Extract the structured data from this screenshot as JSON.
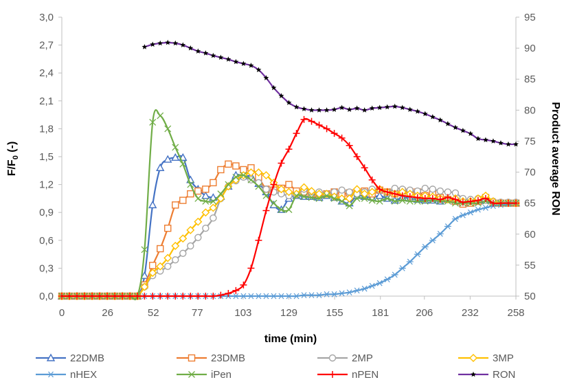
{
  "chart_data": {
    "type": "line",
    "xlabel": "time (min)",
    "ylabel_left_main": "F/F",
    "ylabel_left_sub": "0",
    "ylabel_left_tail": " (-)",
    "ylabel_right": "Product average RON",
    "x_ticks": [
      "0",
      "26",
      "52",
      "77",
      "103",
      "129",
      "155",
      "181",
      "206",
      "232",
      "258"
    ],
    "x_range": [
      0,
      258
    ],
    "y_left_ticks": [
      "0,0",
      "0,3",
      "0,6",
      "0,9",
      "1,2",
      "1,5",
      "1,8",
      "2,1",
      "2,4",
      "2,7",
      "3,0"
    ],
    "y_left_range": [
      0,
      3.0
    ],
    "y_right_ticks": [
      "50",
      "55",
      "60",
      "65",
      "70",
      "75",
      "80",
      "85",
      "90",
      "95"
    ],
    "y_right_range": [
      50,
      95
    ],
    "grid": false,
    "legend_position": "bottom",
    "series": [
      {
        "name": "22DMB",
        "axis": "left",
        "color": "#4472C4",
        "marker": "triangle",
        "x": [
          0,
          4.3,
          8.6,
          12.9,
          17.2,
          21.5,
          25.8,
          30.1,
          34.4,
          38.7,
          43,
          47,
          51.6,
          55.9,
          60.2,
          64.5,
          68.8,
          73.1,
          77.4,
          81.7,
          86,
          90.3,
          94.6,
          98.9,
          103.2,
          107.5,
          111.8,
          116.1,
          120.4,
          124.7,
          129,
          133.3,
          137.6,
          141.9,
          146.2,
          150.5,
          154.8,
          159.1,
          163.4,
          167.7,
          172,
          176.3,
          180.6,
          184.9,
          189.2,
          193.5,
          197.8,
          202.1,
          206.4,
          210.7,
          215,
          219.3,
          223.6,
          227.9,
          232.2,
          236.5,
          240.8,
          245.1,
          249.4,
          253.7,
          258
        ],
        "y": [
          0,
          0,
          0,
          0,
          0,
          0,
          0,
          0,
          0,
          0,
          0,
          0.22,
          0.98,
          1.38,
          1.47,
          1.49,
          1.49,
          1.25,
          1.15,
          1.08,
          1.06,
          1.07,
          1.18,
          1.3,
          1.29,
          1.29,
          1.21,
          1.12,
          0.98,
          0.93,
          1.05,
          1.08,
          1.07,
          1.07,
          1.06,
          1.08,
          1.06,
          1.02,
          1.0,
          1.08,
          1.07,
          1.06,
          1.08,
          1.05,
          1.03,
          1.06,
          1.05,
          1.04,
          1.03,
          1.03,
          1.02,
          1.04,
          1.02,
          1.0,
          1.0,
          1.02,
          1.03,
          1.0,
          1.0,
          1.0,
          1.0
        ]
      },
      {
        "name": "23DMB",
        "axis": "left",
        "color": "#ED7D31",
        "marker": "square",
        "x": [
          0,
          4.3,
          8.6,
          12.9,
          17.2,
          21.5,
          25.8,
          30.1,
          34.4,
          38.7,
          43,
          47,
          51.6,
          55.9,
          60.2,
          64.5,
          68.8,
          73.1,
          77.4,
          81.7,
          86,
          90.3,
          94.6,
          98.9,
          103.2,
          107.5,
          111.8,
          116.1,
          120.4,
          124.7,
          129,
          133.3,
          137.6,
          141.9,
          146.2,
          150.5,
          154.8,
          159.1,
          163.4,
          167.7,
          172,
          176.3,
          180.6,
          184.9,
          189.2,
          193.5,
          197.8,
          202.1,
          206.4,
          210.7,
          215,
          219.3,
          223.6,
          227.9,
          232.2,
          236.5,
          240.8,
          245.1,
          249.4,
          253.7,
          258
        ],
        "y": [
          0,
          0,
          0,
          0,
          0,
          0,
          0,
          0,
          0,
          0,
          0,
          0.12,
          0.33,
          0.51,
          0.73,
          0.98,
          1.03,
          1.1,
          1.13,
          1.15,
          1.22,
          1.36,
          1.42,
          1.4,
          1.36,
          1.38,
          1.28,
          1.15,
          1.14,
          1.16,
          1.2,
          1.13,
          1.12,
          1.1,
          1.09,
          1.1,
          1.12,
          1.1,
          1.11,
          1.12,
          1.13,
          1.1,
          1.14,
          1.12,
          1.1,
          1.13,
          1.12,
          1.12,
          1.08,
          1.1,
          1.06,
          1.04,
          1.02,
          0.99,
          1.0,
          1.02,
          1.06,
          1.0,
          1.0,
          1.0,
          1.0
        ]
      },
      {
        "name": "2MP",
        "axis": "left",
        "color": "#A5A5A5",
        "marker": "circle",
        "x": [
          0,
          4.3,
          8.6,
          12.9,
          17.2,
          21.5,
          25.8,
          30.1,
          34.4,
          38.7,
          43,
          47,
          51.6,
          55.9,
          60.2,
          64.5,
          68.8,
          73.1,
          77.4,
          81.7,
          86,
          90.3,
          94.6,
          98.9,
          103.2,
          107.5,
          111.8,
          116.1,
          120.4,
          124.7,
          129,
          133.3,
          137.6,
          141.9,
          146.2,
          150.5,
          154.8,
          159.1,
          163.4,
          167.7,
          172,
          176.3,
          180.6,
          184.9,
          189.2,
          193.5,
          197.8,
          202.1,
          206.4,
          210.7,
          215,
          219.3,
          223.6,
          227.9,
          232.2,
          236.5,
          240.8,
          245.1,
          249.4,
          253.7,
          258
        ],
        "y": [
          0,
          0,
          0,
          0,
          0,
          0,
          0,
          0,
          0,
          0,
          0,
          0.1,
          0.22,
          0.27,
          0.32,
          0.39,
          0.46,
          0.54,
          0.63,
          0.73,
          0.84,
          1.05,
          1.18,
          1.24,
          1.28,
          1.25,
          1.22,
          1.15,
          1.12,
          1.1,
          1.08,
          1.09,
          1.15,
          1.12,
          1.12,
          1.1,
          1.12,
          1.14,
          1.12,
          1.1,
          1.12,
          1.15,
          1.14,
          1.12,
          1.16,
          1.15,
          1.14,
          1.13,
          1.16,
          1.15,
          1.13,
          1.12,
          1.11,
          1.05,
          1.04,
          1.05,
          1.03,
          1.02,
          1.01,
          1.01,
          1.01
        ]
      },
      {
        "name": "3MP",
        "axis": "left",
        "color": "#FFC000",
        "marker": "diamond",
        "x": [
          0,
          4.3,
          8.6,
          12.9,
          17.2,
          21.5,
          25.8,
          30.1,
          34.4,
          38.7,
          43,
          47,
          51.6,
          55.9,
          60.2,
          64.5,
          68.8,
          73.1,
          77.4,
          81.7,
          86,
          90.3,
          94.6,
          98.9,
          103.2,
          107.5,
          111.8,
          116.1,
          120.4,
          124.7,
          129,
          133.3,
          137.6,
          141.9,
          146.2,
          150.5,
          154.8,
          159.1,
          163.4,
          167.7,
          172,
          176.3,
          180.6,
          184.9,
          189.2,
          193.5,
          197.8,
          202.1,
          206.4,
          210.7,
          215,
          219.3,
          223.6,
          227.9,
          232.2,
          236.5,
          240.8,
          245.1,
          249.4,
          253.7,
          258
        ],
        "y": [
          0,
          0,
          0,
          0,
          0,
          0,
          0,
          0,
          0,
          0,
          0,
          0.1,
          0.25,
          0.32,
          0.41,
          0.54,
          0.62,
          0.71,
          0.8,
          0.9,
          0.95,
          1.05,
          1.18,
          1.25,
          1.3,
          1.33,
          1.33,
          1.3,
          1.22,
          1.15,
          1.12,
          1.1,
          1.17,
          1.13,
          1.1,
          1.1,
          1.07,
          1.05,
          1.05,
          1.15,
          1.1,
          1.12,
          1.15,
          1.12,
          1.1,
          1.12,
          1.1,
          1.08,
          1.08,
          1.07,
          1.05,
          1.04,
          1.05,
          1.02,
          1.02,
          1.05,
          1.08,
          1.02,
          1.0,
          1.0,
          1.0
        ]
      },
      {
        "name": "nHEX",
        "axis": "left",
        "color": "#5B9BD5",
        "marker": "star",
        "x": [
          0,
          4.3,
          8.6,
          12.9,
          17.2,
          21.5,
          25.8,
          30.1,
          34.4,
          38.7,
          43,
          47,
          51.6,
          55.9,
          60.2,
          64.5,
          68.8,
          73.1,
          77.4,
          81.7,
          86,
          90.3,
          94.6,
          98.9,
          103.2,
          107.5,
          111.8,
          116.1,
          120.4,
          124.7,
          129,
          133.3,
          137.6,
          141.9,
          146.2,
          150.5,
          154.8,
          159.1,
          163.4,
          167.7,
          172,
          176.3,
          180.6,
          184.9,
          189.2,
          193.5,
          197.8,
          202.1,
          206.4,
          210.7,
          215,
          219.3,
          223.6,
          227.9,
          232.2,
          236.5,
          240.8,
          245.1,
          249.4,
          253.7,
          258
        ],
        "y": [
          0,
          0,
          0,
          0,
          0,
          0,
          0,
          0,
          0,
          0,
          0,
          0,
          0,
          0,
          0,
          0,
          0,
          0,
          0,
          0,
          0,
          0,
          0,
          0,
          0,
          0,
          0,
          0,
          0,
          0,
          0,
          0,
          0.01,
          0.01,
          0.01,
          0.02,
          0.02,
          0.03,
          0.04,
          0.06,
          0.08,
          0.11,
          0.14,
          0.18,
          0.23,
          0.3,
          0.37,
          0.45,
          0.53,
          0.6,
          0.67,
          0.75,
          0.83,
          0.87,
          0.9,
          0.93,
          0.95,
          0.97,
          0.98,
          0.99,
          1.0
        ]
      },
      {
        "name": "iPen",
        "axis": "left",
        "color": "#70AD47",
        "marker": "x",
        "x": [
          0,
          4.3,
          8.6,
          12.9,
          17.2,
          21.5,
          25.8,
          30.1,
          34.4,
          38.7,
          43,
          47,
          51.6,
          55.9,
          60.2,
          64.5,
          68.8,
          73.1,
          77.4,
          81.7,
          86,
          90.3,
          94.6,
          98.9,
          103.2,
          107.5,
          111.8,
          116.1,
          120.4,
          124.7,
          129,
          133.3,
          137.6,
          141.9,
          146.2,
          150.5,
          154.8,
          159.1,
          163.4,
          167.7,
          172,
          176.3,
          180.6,
          184.9,
          189.2,
          193.5,
          197.8,
          202.1,
          206.4,
          210.7,
          215,
          219.3,
          223.6,
          227.9,
          232.2,
          236.5,
          240.8,
          245.1,
          249.4,
          253.7,
          258
        ],
        "y": [
          0,
          0,
          0,
          0,
          0,
          0,
          0,
          0,
          0,
          0,
          0,
          0.5,
          1.87,
          1.94,
          1.8,
          1.6,
          1.42,
          1.2,
          1.05,
          1.02,
          1.02,
          1.1,
          1.2,
          1.28,
          1.3,
          1.25,
          1.18,
          1.08,
          1.0,
          0.93,
          0.93,
          1.08,
          1.07,
          1.06,
          1.05,
          1.08,
          1.05,
          1.02,
          0.97,
          1.05,
          1.05,
          1.03,
          1.02,
          1.05,
          1.02,
          1.03,
          1.02,
          1.02,
          1.02,
          1.03,
          1.02,
          1.02,
          1.0,
          1.0,
          1.0,
          1.0,
          1.02,
          1.0,
          1.0,
          1.0,
          1.0
        ]
      },
      {
        "name": "nPEN",
        "axis": "left",
        "color": "#FF0000",
        "marker": "plus",
        "x": [
          0,
          4.3,
          8.6,
          12.9,
          17.2,
          21.5,
          25.8,
          30.1,
          34.4,
          38.7,
          43,
          47,
          51.6,
          55.9,
          60.2,
          64.5,
          68.8,
          73.1,
          77.4,
          81.7,
          86,
          90.3,
          94.6,
          98.9,
          103.2,
          107.5,
          111.8,
          116.1,
          120.4,
          124.7,
          129,
          133.3,
          137.6,
          141.9,
          146.2,
          150.5,
          154.8,
          159.1,
          163.4,
          167.7,
          172,
          176.3,
          180.6,
          184.9,
          189.2,
          193.5,
          197.8,
          202.1,
          206.4,
          210.7,
          215,
          219.3,
          223.6,
          227.9,
          232.2,
          236.5,
          240.8,
          245.1,
          249.4,
          253.7,
          258
        ],
        "y": [
          0,
          0,
          0,
          0,
          0,
          0,
          0,
          0,
          0,
          0,
          0,
          0,
          0,
          0,
          0,
          0,
          0,
          0,
          0,
          0,
          0,
          0.01,
          0.03,
          0.06,
          0.12,
          0.3,
          0.6,
          0.92,
          1.2,
          1.43,
          1.58,
          1.75,
          1.9,
          1.88,
          1.84,
          1.8,
          1.75,
          1.7,
          1.62,
          1.5,
          1.38,
          1.25,
          1.15,
          1.12,
          1.1,
          1.08,
          1.07,
          1.06,
          1.05,
          1.05,
          1.04,
          1.06,
          1.04,
          1.01,
          1.02,
          1.03,
          1.05,
          1.0,
          1.0,
          1.0,
          1.0
        ]
      },
      {
        "name": "RON",
        "axis": "right",
        "color": "#7030A0",
        "marker": "star5",
        "x": [
          47,
          51.6,
          55.9,
          60.2,
          64.5,
          68.8,
          73.1,
          77.4,
          81.7,
          86,
          90.3,
          94.6,
          98.9,
          103.2,
          107.5,
          111.8,
          116.1,
          120.4,
          124.7,
          129,
          133.3,
          137.6,
          141.9,
          146.2,
          150.5,
          154.8,
          159.1,
          163.4,
          167.7,
          172,
          176.3,
          180.6,
          184.9,
          189.2,
          193.5,
          197.8,
          202.1,
          206.4,
          210.7,
          215,
          219.3,
          223.6,
          227.9,
          232.2,
          236.5,
          240.8,
          245.1,
          249.4,
          253.7,
          258
        ],
        "y": [
          90.2,
          90.6,
          90.8,
          90.9,
          90.8,
          90.5,
          90.0,
          89.5,
          89.2,
          88.8,
          88.5,
          88.2,
          87.8,
          87.5,
          87.2,
          86.5,
          85.2,
          83.6,
          82.3,
          81.2,
          80.5,
          80.2,
          80.0,
          80.0,
          80.0,
          80.1,
          80.4,
          80.1,
          80.3,
          80.0,
          80.3,
          80.4,
          80.5,
          80.6,
          80.4,
          80.1,
          79.8,
          79.4,
          78.9,
          78.4,
          77.8,
          77.2,
          76.7,
          76.2,
          75.4,
          75.2,
          75.0,
          74.7,
          74.5,
          74.5
        ]
      }
    ]
  }
}
